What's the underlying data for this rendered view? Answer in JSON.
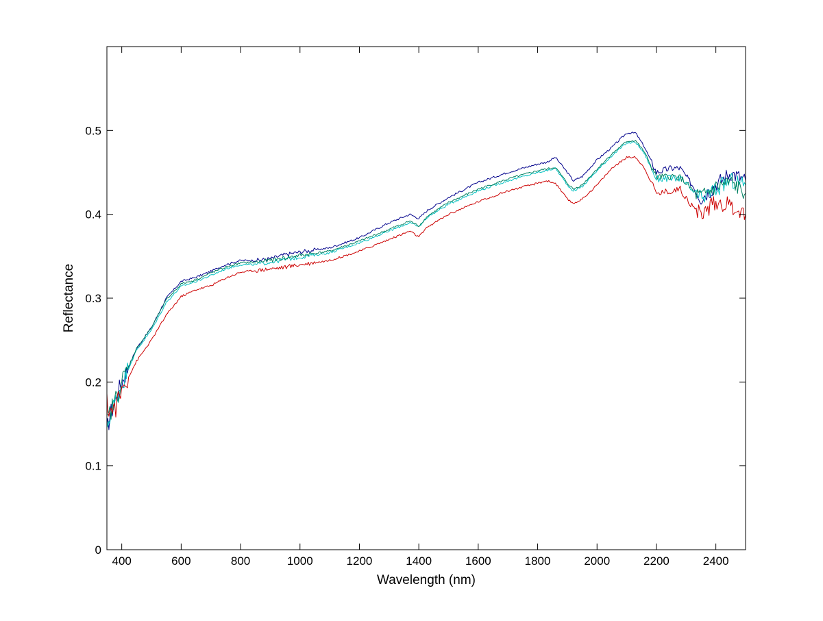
{
  "chart_data": {
    "type": "line",
    "xlabel": "Wavelength (nm)",
    "ylabel": "Reflectance",
    "xlim": [
      350,
      2500
    ],
    "ylim": [
      0,
      0.6
    ],
    "xticks": [
      400,
      600,
      800,
      1000,
      1200,
      1400,
      1600,
      1800,
      2000,
      2200,
      2400
    ],
    "yticks": [
      0,
      0.1,
      0.2,
      0.3,
      0.4,
      0.5
    ],
    "ytick_labels": [
      "0",
      "0.1",
      "0.2",
      "0.3",
      "0.4",
      "0.5"
    ],
    "grid": false,
    "legend": "none",
    "series": [
      {
        "color": "#00008b",
        "x": [
          350,
          360,
          380,
          400,
          450,
          500,
          550,
          600,
          650,
          700,
          750,
          800,
          850,
          900,
          950,
          1000,
          1100,
          1200,
          1300,
          1370,
          1400,
          1430,
          1500,
          1600,
          1700,
          1800,
          1830,
          1860,
          1900,
          1920,
          1950,
          2000,
          2050,
          2100,
          2130,
          2160,
          2180,
          2200,
          2250,
          2280,
          2300,
          2330,
          2350,
          2400,
          2450,
          2500
        ],
        "y": [
          0.14,
          0.16,
          0.18,
          0.2,
          0.24,
          0.265,
          0.3,
          0.32,
          0.325,
          0.332,
          0.34,
          0.345,
          0.345,
          0.347,
          0.352,
          0.355,
          0.36,
          0.372,
          0.39,
          0.4,
          0.395,
          0.405,
          0.42,
          0.438,
          0.45,
          0.46,
          0.462,
          0.468,
          0.45,
          0.44,
          0.445,
          0.465,
          0.48,
          0.497,
          0.497,
          0.48,
          0.465,
          0.45,
          0.455,
          0.455,
          0.445,
          0.43,
          0.42,
          0.435,
          0.45,
          0.44
        ]
      },
      {
        "color": "#00c0c0",
        "x": [
          350,
          360,
          380,
          400,
          450,
          500,
          550,
          600,
          650,
          700,
          750,
          800,
          850,
          900,
          950,
          1000,
          1100,
          1200,
          1300,
          1370,
          1400,
          1430,
          1500,
          1600,
          1700,
          1800,
          1830,
          1860,
          1900,
          1920,
          1950,
          2000,
          2050,
          2100,
          2130,
          2160,
          2180,
          2200,
          2250,
          2280,
          2300,
          2330,
          2350,
          2400,
          2450,
          2500
        ],
        "y": [
          0.145,
          0.16,
          0.178,
          0.198,
          0.238,
          0.262,
          0.295,
          0.314,
          0.32,
          0.327,
          0.335,
          0.34,
          0.34,
          0.343,
          0.346,
          0.349,
          0.354,
          0.366,
          0.38,
          0.39,
          0.385,
          0.397,
          0.412,
          0.428,
          0.44,
          0.45,
          0.452,
          0.455,
          0.435,
          0.428,
          0.433,
          0.452,
          0.47,
          0.485,
          0.486,
          0.472,
          0.457,
          0.442,
          0.443,
          0.443,
          0.435,
          0.425,
          0.418,
          0.43,
          0.44,
          0.435
        ]
      },
      {
        "color": "#008060",
        "x": [
          350,
          360,
          380,
          400,
          450,
          500,
          550,
          600,
          650,
          700,
          750,
          800,
          850,
          900,
          950,
          1000,
          1100,
          1200,
          1300,
          1370,
          1400,
          1430,
          1500,
          1600,
          1700,
          1800,
          1830,
          1860,
          1900,
          1920,
          1950,
          2000,
          2050,
          2100,
          2130,
          2160,
          2180,
          2200,
          2250,
          2280,
          2300,
          2330,
          2350,
          2400,
          2450,
          2500
        ],
        "y": [
          0.15,
          0.163,
          0.18,
          0.2,
          0.24,
          0.265,
          0.298,
          0.317,
          0.322,
          0.33,
          0.337,
          0.342,
          0.343,
          0.345,
          0.348,
          0.351,
          0.356,
          0.368,
          0.382,
          0.392,
          0.386,
          0.398,
          0.414,
          0.43,
          0.442,
          0.452,
          0.454,
          0.456,
          0.437,
          0.43,
          0.435,
          0.454,
          0.472,
          0.487,
          0.488,
          0.474,
          0.459,
          0.444,
          0.445,
          0.444,
          0.437,
          0.425,
          0.42,
          0.432,
          0.438,
          0.425
        ]
      },
      {
        "color": "#cc0000",
        "x": [
          350,
          360,
          380,
          400,
          450,
          500,
          550,
          600,
          650,
          700,
          750,
          800,
          850,
          900,
          950,
          1000,
          1100,
          1200,
          1300,
          1370,
          1400,
          1430,
          1500,
          1600,
          1700,
          1800,
          1830,
          1860,
          1900,
          1920,
          1950,
          2000,
          2050,
          2100,
          2130,
          2160,
          2180,
          2200,
          2250,
          2280,
          2300,
          2330,
          2350,
          2400,
          2450,
          2500
        ],
        "y": [
          0.175,
          0.165,
          0.17,
          0.19,
          0.225,
          0.25,
          0.28,
          0.302,
          0.31,
          0.315,
          0.324,
          0.331,
          0.333,
          0.335,
          0.337,
          0.34,
          0.345,
          0.356,
          0.37,
          0.38,
          0.373,
          0.385,
          0.4,
          0.415,
          0.428,
          0.437,
          0.44,
          0.437,
          0.418,
          0.413,
          0.418,
          0.435,
          0.455,
          0.468,
          0.468,
          0.455,
          0.44,
          0.425,
          0.428,
          0.43,
          0.42,
          0.405,
          0.4,
          0.415,
          0.41,
          0.4
        ]
      }
    ]
  }
}
